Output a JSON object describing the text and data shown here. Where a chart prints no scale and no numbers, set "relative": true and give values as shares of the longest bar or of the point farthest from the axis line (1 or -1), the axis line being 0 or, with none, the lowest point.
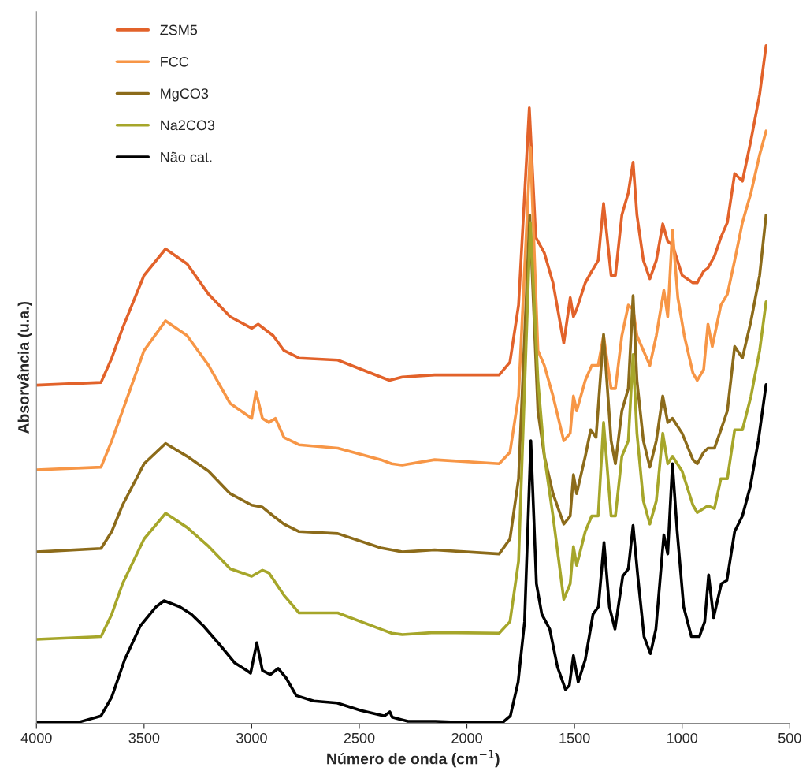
{
  "chart_data": {
    "type": "line",
    "relative": true,
    "xlabel": "Número de onda (cm$^{−1}$)",
    "ylabel": "Absorvância (u.a.)",
    "xlim": [
      4000,
      500
    ],
    "xticks": [
      4000,
      3500,
      3000,
      2500,
      2000,
      1500,
      1000,
      500
    ],
    "tick_labels": "x",
    "grid": false,
    "legend": "top left",
    "marker": "none",
    "line_style": "solid",
    "series": [
      {
        "name": "ZSM5",
        "color": "#e2622a",
        "x": [
          4000,
          3700,
          3650,
          3600,
          3500,
          3400,
          3300,
          3200,
          3100,
          3000,
          2970,
          2900,
          2850,
          2780,
          2600,
          2400,
          2360,
          2300,
          2150,
          1850,
          1800,
          1760,
          1710,
          1680,
          1640,
          1600,
          1550,
          1520,
          1505,
          1490,
          1450,
          1420,
          1390,
          1365,
          1330,
          1310,
          1280,
          1250,
          1228,
          1210,
          1180,
          1150,
          1120,
          1090,
          1067,
          1045,
          1000,
          950,
          930,
          900,
          880,
          850,
          820,
          790,
          756,
          720,
          680,
          640,
          610
        ],
        "values": [
          0.499,
          0.503,
          0.539,
          0.583,
          0.661,
          0.7,
          0.678,
          0.633,
          0.6,
          0.583,
          0.589,
          0.572,
          0.55,
          0.539,
          0.536,
          0.511,
          0.506,
          0.511,
          0.514,
          0.514,
          0.533,
          0.617,
          0.908,
          0.717,
          0.694,
          0.65,
          0.561,
          0.628,
          0.6,
          0.611,
          0.65,
          0.667,
          0.683,
          0.767,
          0.661,
          0.661,
          0.75,
          0.783,
          0.828,
          0.75,
          0.683,
          0.656,
          0.683,
          0.737,
          0.711,
          0.706,
          0.661,
          0.65,
          0.65,
          0.667,
          0.672,
          0.689,
          0.717,
          0.739,
          0.811,
          0.8,
          0.861,
          0.928,
          1.0
        ]
      },
      {
        "name": "FCC",
        "color": "#f79646",
        "x": [
          4000,
          3700,
          3650,
          3600,
          3500,
          3400,
          3300,
          3200,
          3100,
          3000,
          2980,
          2950,
          2920,
          2890,
          2850,
          2780,
          2600,
          2400,
          2350,
          2300,
          2150,
          1850,
          1800,
          1760,
          1705,
          1670,
          1640,
          1600,
          1550,
          1520,
          1505,
          1490,
          1450,
          1420,
          1390,
          1365,
          1330,
          1310,
          1280,
          1250,
          1228,
          1210,
          1180,
          1150,
          1120,
          1085,
          1067,
          1045,
          1020,
          990,
          950,
          930,
          900,
          880,
          860,
          820,
          790,
          756,
          720,
          680,
          640,
          610
        ],
        "values": [
          0.374,
          0.378,
          0.417,
          0.461,
          0.55,
          0.594,
          0.572,
          0.528,
          0.472,
          0.45,
          0.489,
          0.45,
          0.444,
          0.45,
          0.422,
          0.411,
          0.406,
          0.389,
          0.383,
          0.381,
          0.389,
          0.383,
          0.4,
          0.483,
          0.85,
          0.55,
          0.528,
          0.483,
          0.417,
          0.428,
          0.483,
          0.461,
          0.506,
          0.528,
          0.528,
          0.572,
          0.494,
          0.494,
          0.572,
          0.617,
          0.611,
          0.572,
          0.55,
          0.528,
          0.572,
          0.639,
          0.6,
          0.728,
          0.628,
          0.572,
          0.517,
          0.506,
          0.522,
          0.589,
          0.556,
          0.617,
          0.633,
          0.683,
          0.739,
          0.783,
          0.839,
          0.874
        ]
      },
      {
        "name": "MgCO3",
        "color": "#8c6b1a",
        "x": [
          4000,
          3700,
          3650,
          3600,
          3500,
          3400,
          3300,
          3200,
          3100,
          3000,
          2950,
          2900,
          2850,
          2780,
          2600,
          2400,
          2350,
          2300,
          2150,
          1850,
          1800,
          1760,
          1708,
          1670,
          1640,
          1600,
          1550,
          1520,
          1505,
          1490,
          1450,
          1425,
          1400,
          1365,
          1330,
          1310,
          1280,
          1250,
          1228,
          1210,
          1180,
          1150,
          1120,
          1090,
          1067,
          1045,
          1000,
          950,
          930,
          900,
          880,
          850,
          820,
          790,
          756,
          720,
          680,
          640,
          610
        ],
        "values": [
          0.253,
          0.258,
          0.283,
          0.322,
          0.383,
          0.413,
          0.394,
          0.372,
          0.339,
          0.322,
          0.319,
          0.306,
          0.294,
          0.283,
          0.28,
          0.259,
          0.256,
          0.253,
          0.256,
          0.25,
          0.272,
          0.361,
          0.75,
          0.461,
          0.394,
          0.339,
          0.294,
          0.306,
          0.367,
          0.339,
          0.394,
          0.433,
          0.422,
          0.574,
          0.417,
          0.383,
          0.461,
          0.494,
          0.631,
          0.506,
          0.417,
          0.378,
          0.417,
          0.483,
          0.444,
          0.45,
          0.428,
          0.389,
          0.383,
          0.4,
          0.406,
          0.406,
          0.433,
          0.461,
          0.556,
          0.539,
          0.594,
          0.661,
          0.75
        ]
      },
      {
        "name": "Na2CO3",
        "color": "#a6a62a",
        "x": [
          4000,
          3700,
          3650,
          3600,
          3500,
          3400,
          3300,
          3200,
          3100,
          3000,
          2950,
          2920,
          2850,
          2780,
          2600,
          2400,
          2350,
          2300,
          2150,
          1850,
          1800,
          1760,
          1705,
          1670,
          1640,
          1600,
          1550,
          1520,
          1505,
          1490,
          1450,
          1420,
          1390,
          1365,
          1330,
          1310,
          1280,
          1250,
          1228,
          1210,
          1180,
          1150,
          1120,
          1090,
          1067,
          1045,
          1000,
          950,
          930,
          900,
          880,
          850,
          820,
          790,
          756,
          720,
          680,
          640,
          610
        ],
        "values": [
          0.124,
          0.128,
          0.161,
          0.206,
          0.272,
          0.31,
          0.289,
          0.261,
          0.228,
          0.217,
          0.226,
          0.222,
          0.189,
          0.163,
          0.163,
          0.139,
          0.133,
          0.131,
          0.134,
          0.133,
          0.15,
          0.239,
          0.739,
          0.506,
          0.394,
          0.306,
          0.183,
          0.206,
          0.261,
          0.233,
          0.283,
          0.306,
          0.306,
          0.444,
          0.306,
          0.306,
          0.394,
          0.417,
          0.544,
          0.428,
          0.328,
          0.294,
          0.328,
          0.428,
          0.383,
          0.394,
          0.372,
          0.322,
          0.311,
          0.317,
          0.321,
          0.317,
          0.361,
          0.361,
          0.433,
          0.433,
          0.483,
          0.55,
          0.622
        ]
      },
      {
        "name": "Não cat.",
        "color": "#000000",
        "x": [
          4000,
          3900,
          3800,
          3700,
          3650,
          3590,
          3517,
          3444,
          3407,
          3334,
          3280,
          3225,
          3151,
          3078,
          3023,
          3005,
          2976,
          2950,
          2914,
          2877,
          2840,
          2793,
          2712,
          2603,
          2493,
          2383,
          2358,
          2347,
          2274,
          2146,
          1981,
          1835,
          1798,
          1762,
          1732,
          1703,
          1677,
          1652,
          1615,
          1579,
          1542,
          1524,
          1505,
          1483,
          1450,
          1414,
          1389,
          1363,
          1338,
          1312,
          1276,
          1250,
          1228,
          1206,
          1177,
          1147,
          1122,
          1085,
          1067,
          1045,
          1023,
          993,
          957,
          920,
          895,
          877,
          854,
          818,
          792,
          756,
          720,
          683,
          646,
          610
        ],
        "values": [
          0.002,
          0.002,
          0.002,
          0.011,
          0.039,
          0.094,
          0.144,
          0.172,
          0.181,
          0.172,
          0.161,
          0.144,
          0.117,
          0.089,
          0.078,
          0.074,
          0.119,
          0.078,
          0.072,
          0.081,
          0.067,
          0.041,
          0.033,
          0.03,
          0.019,
          0.011,
          0.017,
          0.009,
          0.003,
          0.003,
          0.001,
          0.001,
          0.011,
          0.061,
          0.15,
          0.417,
          0.206,
          0.161,
          0.139,
          0.083,
          0.05,
          0.056,
          0.1,
          0.061,
          0.094,
          0.161,
          0.172,
          0.267,
          0.172,
          0.139,
          0.217,
          0.228,
          0.292,
          0.217,
          0.128,
          0.103,
          0.139,
          0.278,
          0.25,
          0.383,
          0.283,
          0.172,
          0.128,
          0.128,
          0.15,
          0.219,
          0.156,
          0.206,
          0.211,
          0.283,
          0.306,
          0.35,
          0.417,
          0.5
        ]
      }
    ]
  }
}
